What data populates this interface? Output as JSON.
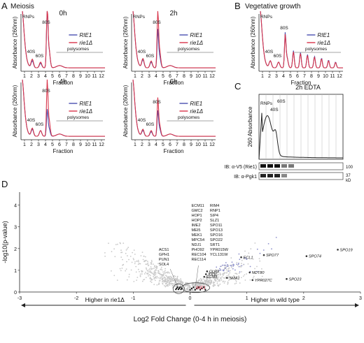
{
  "panels": {
    "A": {
      "letter": "A",
      "title": "Meiosis",
      "ylabel": "Absorbance (260nm)",
      "xlabel": "Fraction",
      "ticks": [
        "1",
        "2",
        "3",
        "4",
        "5",
        "6",
        "7",
        "8",
        "9",
        "10",
        "11",
        "12"
      ],
      "legend": [
        "RIE1",
        "rie1Δ"
      ],
      "peaks": {
        "rnps": "RNPs",
        "s40": "40S",
        "s60": "60S",
        "s80": "80S",
        "poly": "polysomes"
      },
      "times": [
        "0h",
        "2h",
        "4h",
        "6h"
      ]
    },
    "B": {
      "letter": "B",
      "title": "Vegetative growth",
      "ylabel": "Absorbance (260nm)",
      "xlabel": "Fraction",
      "legend": [
        "RIE1",
        "rie1Δ"
      ],
      "peaks": {
        "rnps": "RNPs",
        "s40": "40S",
        "s60": "60S",
        "s80": "80S",
        "poly": "polysomes"
      }
    },
    "C": {
      "letter": "C",
      "title": "2h  EDTA",
      "ylabel": "260 Absorbance",
      "peaks": {
        "rnps": "RNPs",
        "s40": "40S",
        "s60": "60S"
      },
      "blot1": "IB: α-V5 (Rie1)",
      "blot2": "IB: α-Pgk1",
      "mw1": "100",
      "mw2": "37",
      "kd": "kD"
    },
    "D": {
      "letter": "D",
      "ylabel": "-log10(p-value)",
      "xlabel": "Log2 Fold Change (0-4 h in meiosis)",
      "yticks": [
        "0",
        "1",
        "2",
        "3",
        "4"
      ],
      "xticks": [
        "-3",
        "-2",
        "-1",
        "0",
        "1",
        "2",
        "3"
      ],
      "left_label": "Higher in rie1Δ",
      "right_label": "Higher in wild type",
      "gene_list": [
        "ECM11",
        "GMC2",
        "HOP1",
        "HOP2",
        "IME2",
        "MEI5",
        "MEK1",
        "MPC54",
        "NDJ1",
        "PHO92",
        "REC104",
        "REC114"
      ],
      "gene_list2": [
        "RIM4",
        "RNP1",
        "SIP4",
        "SLZ1",
        "SPO11",
        "SPO13",
        "SPO16",
        "SPO22",
        "SRT1",
        "YPR015W",
        "YCL131W"
      ],
      "left_genes": [
        "ACS1",
        "GPH1",
        "PUN1",
        "SOL4"
      ],
      "labeled": [
        "SPO19",
        "SPO74",
        "SPO77",
        "ECL1",
        "CLB3",
        "IGD1",
        "ECM8",
        "SMA1",
        "NDT80",
        "YPR027C",
        "SPO23"
      ],
      "ime1": "IME1"
    }
  },
  "chart_data": [
    {
      "type": "line",
      "panel": "A-0h",
      "title": "0h",
      "xlabel": "Fraction",
      "ylabel": "Absorbance (260nm)",
      "x": [
        1,
        2,
        3,
        4,
        5,
        6,
        7,
        8,
        9,
        10,
        11,
        12
      ],
      "series": [
        {
          "name": "RIE1",
          "values": [
            1.0,
            0.18,
            0.1,
            0.85,
            0.12,
            0.1,
            0.09,
            0.08,
            0.08,
            0.07,
            0.07,
            0.06
          ]
        },
        {
          "name": "rie1Δ",
          "values": [
            1.0,
            0.2,
            0.12,
            0.9,
            0.12,
            0.1,
            0.09,
            0.08,
            0.08,
            0.07,
            0.07,
            0.06
          ]
        }
      ]
    },
    {
      "type": "line",
      "panel": "A-2h",
      "title": "2h",
      "xlabel": "Fraction",
      "ylabel": "Absorbance (260nm)",
      "x": [
        1,
        2,
        3,
        4,
        5,
        6,
        7,
        8,
        9,
        10,
        11,
        12
      ],
      "series": [
        {
          "name": "RIE1",
          "values": [
            1.0,
            0.18,
            0.12,
            0.6,
            0.14,
            0.11,
            0.1,
            0.09,
            0.08,
            0.08,
            0.07,
            0.06
          ]
        },
        {
          "name": "rie1Δ",
          "values": [
            1.0,
            0.2,
            0.14,
            0.88,
            0.16,
            0.12,
            0.1,
            0.09,
            0.08,
            0.08,
            0.07,
            0.06
          ]
        }
      ]
    },
    {
      "type": "line",
      "panel": "A-4h",
      "title": "4h",
      "xlabel": "Fraction",
      "ylabel": "Absorbance (260nm)",
      "x": [
        1,
        2,
        3,
        4,
        5,
        6,
        7,
        8,
        9,
        10,
        11,
        12
      ],
      "series": [
        {
          "name": "RIE1",
          "values": [
            1.0,
            0.18,
            0.14,
            0.42,
            0.12,
            0.1,
            0.09,
            0.08,
            0.08,
            0.07,
            0.07,
            0.06
          ]
        },
        {
          "name": "rie1Δ",
          "values": [
            1.0,
            0.2,
            0.14,
            0.86,
            0.14,
            0.1,
            0.09,
            0.08,
            0.08,
            0.07,
            0.07,
            0.06
          ]
        }
      ]
    },
    {
      "type": "line",
      "panel": "A-6h",
      "title": "6h",
      "xlabel": "Fraction",
      "ylabel": "Absorbance (260nm)",
      "x": [
        1,
        2,
        3,
        4,
        5,
        6,
        7,
        8,
        9,
        10,
        11,
        12
      ],
      "series": [
        {
          "name": "RIE1",
          "values": [
            1.0,
            0.16,
            0.12,
            0.4,
            0.12,
            0.1,
            0.09,
            0.08,
            0.08,
            0.07,
            0.07,
            0.06
          ]
        },
        {
          "name": "rie1Δ",
          "values": [
            1.0,
            0.18,
            0.14,
            0.58,
            0.14,
            0.1,
            0.09,
            0.08,
            0.08,
            0.07,
            0.07,
            0.06
          ]
        }
      ]
    },
    {
      "type": "line",
      "panel": "B",
      "title": "Vegetative growth",
      "xlabel": "Fraction",
      "ylabel": "Absorbance (260nm)",
      "x": [
        1,
        2,
        3,
        4,
        5,
        6,
        7,
        8,
        9,
        10,
        11,
        12
      ],
      "series": [
        {
          "name": "RIE1",
          "values": [
            1.0,
            0.2,
            0.16,
            0.6,
            0.45,
            0.38,
            0.32,
            0.27,
            0.22,
            0.18,
            0.14,
            0.1
          ]
        },
        {
          "name": "rie1Δ",
          "values": [
            1.0,
            0.2,
            0.16,
            0.58,
            0.43,
            0.36,
            0.3,
            0.25,
            0.2,
            0.16,
            0.12,
            0.09
          ]
        }
      ]
    },
    {
      "type": "scatter",
      "panel": "D",
      "xlabel": "Log2 Fold Change (0-4 h in meiosis)",
      "ylabel": "-log10(p-value)",
      "xlim": [
        -3,
        3
      ],
      "ylim": [
        0,
        4.6
      ],
      "points": [
        {
          "label": "SPO19",
          "x": 2.6,
          "y": 1.95
        },
        {
          "label": "SPO74",
          "x": 2.05,
          "y": 1.65
        },
        {
          "label": "SPO77",
          "x": 1.3,
          "y": 1.7
        },
        {
          "label": "ECL1",
          "x": 0.9,
          "y": 1.6
        },
        {
          "label": "CLB3",
          "x": 0.3,
          "y": 0.95
        },
        {
          "label": "IGD1",
          "x": 0.28,
          "y": 0.82
        },
        {
          "label": "ECM8",
          "x": 0.25,
          "y": 0.7
        },
        {
          "label": "SMA1",
          "x": 0.65,
          "y": 0.65
        },
        {
          "label": "NDT80",
          "x": 1.05,
          "y": 0.9
        },
        {
          "label": "YPR027C",
          "x": 1.1,
          "y": 0.55
        },
        {
          "label": "SPO23",
          "x": 1.7,
          "y": 0.6
        }
      ]
    }
  ]
}
